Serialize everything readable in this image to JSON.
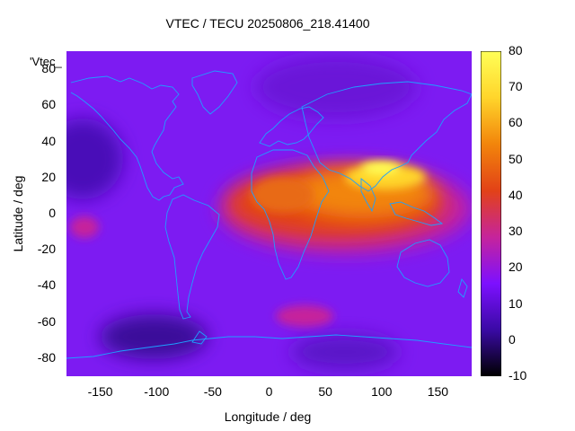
{
  "title": "VTEC / TECU 20250806_218.41400",
  "xlabel": "Longitude / deg",
  "ylabel": "Latitude / deg",
  "legend_key": "'Vtec_",
  "colorbar": {
    "ticks": [
      "80",
      "70",
      "60",
      "50",
      "40",
      "30",
      "20",
      "10",
      "0",
      "-10"
    ],
    "range": [
      -10,
      80
    ],
    "colors": [
      "#000000",
      "#3a0aa5",
      "#7d10ff",
      "#c6249b",
      "#e24217",
      "#f2850b",
      "#ffd52b",
      "#ffff57"
    ]
  },
  "map": {
    "coastline_color": "#1ea0ff",
    "background_color": "#7d1bf2"
  },
  "chart_data": {
    "type": "heatmap",
    "title": "VTEC / TECU 20250806_218.41400",
    "xlabel": "Longitude / deg",
    "ylabel": "Latitude / deg",
    "xlim": [
      -180,
      180
    ],
    "ylim": [
      -90,
      90
    ],
    "zlim": [
      -10,
      80
    ],
    "x_ticks": [
      "-150",
      "-100",
      "-50",
      "0",
      "50",
      "100",
      "150"
    ],
    "y_ticks": [
      "80",
      "60",
      "40",
      "20",
      "0",
      "-20",
      "-40",
      "-60",
      "-80"
    ],
    "series": [
      {
        "name": "'Vtec_",
        "features": [
          {
            "lon": 85,
            "lat": 23,
            "vtec": 78
          },
          {
            "lon": 60,
            "lat": 18,
            "vtec": 58
          },
          {
            "lon": 100,
            "lat": 20,
            "vtec": 65
          },
          {
            "lon": 10,
            "lat": 5,
            "vtec": 50
          },
          {
            "lon": 40,
            "lat": 10,
            "vtec": 45
          },
          {
            "lon": 110,
            "lat": -5,
            "vtec": 48
          },
          {
            "lon": -30,
            "lat": 5,
            "vtec": 35
          },
          {
            "lon": 30,
            "lat": -15,
            "vtec": 38
          },
          {
            "lon": 45,
            "lat": -55,
            "vtec": 30
          },
          {
            "lon": -145,
            "lat": 30,
            "vtec": 5
          },
          {
            "lon": -105,
            "lat": -68,
            "vtec": 3
          },
          {
            "lon": -170,
            "lat": -8,
            "vtec": 22
          }
        ]
      }
    ]
  }
}
